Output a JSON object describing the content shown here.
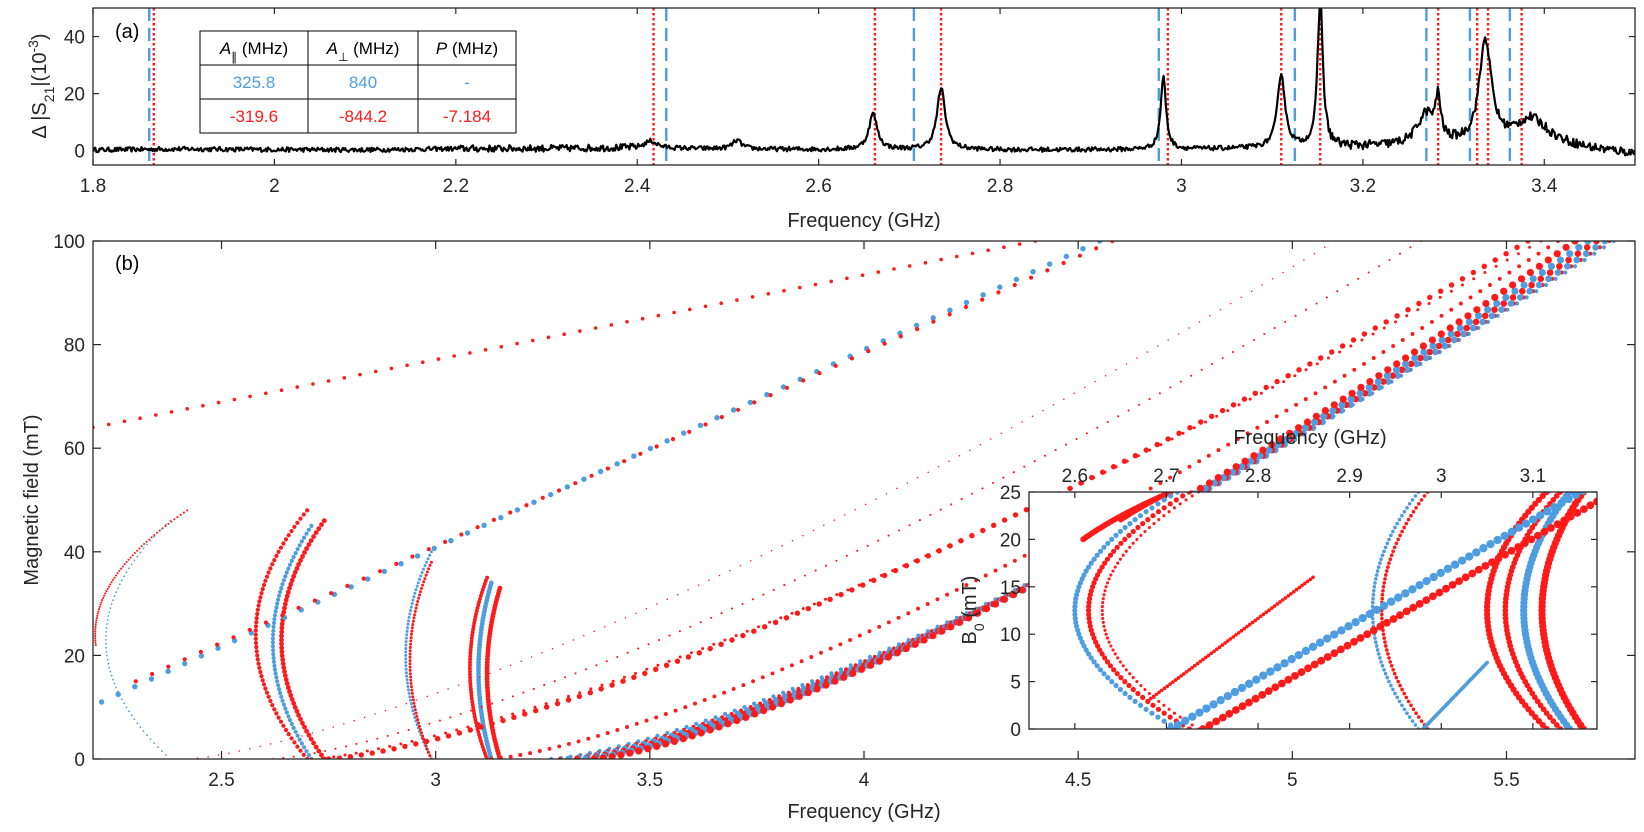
{
  "chart_data": [
    {
      "panel": "(a)",
      "type": "line",
      "xlabel": "Frequency (GHz)",
      "ylabel_parts": [
        "Δ |S",
        "21",
        "|(10",
        "-3",
        ")"
      ],
      "xlim": [
        1.8,
        3.5
      ],
      "ylim": [
        -5,
        50
      ],
      "xticks": [
        1.8,
        2.0,
        2.2,
        2.4,
        2.6,
        2.8,
        3.0,
        3.2,
        3.4
      ],
      "xtick_labels": [
        "1.8",
        "2",
        "2.2",
        "2.4",
        "2.6",
        "2.8",
        "3",
        "3.2",
        "3.4"
      ],
      "yticks": [
        0,
        20,
        40
      ],
      "ytick_labels": [
        "0",
        "20",
        "40"
      ],
      "baseline": [
        [
          1.8,
          0.3
        ],
        [
          1.9,
          0.6
        ],
        [
          2.0,
          0.4
        ],
        [
          2.1,
          0.3
        ],
        [
          2.2,
          0.7
        ],
        [
          2.3,
          0.8
        ],
        [
          2.4,
          1.0
        ],
        [
          2.5,
          0.6
        ],
        [
          2.6,
          0.4
        ],
        [
          2.8,
          0.3
        ],
        [
          2.9,
          0.3
        ],
        [
          3.0,
          0.4
        ],
        [
          3.1,
          0.8
        ],
        [
          3.2,
          1.2
        ],
        [
          3.3,
          1.5
        ],
        [
          3.4,
          3.0
        ],
        [
          3.45,
          0.5
        ],
        [
          3.5,
          -1.0
        ]
      ],
      "peaks": [
        {
          "x": 2.415,
          "h": 2.5,
          "w": 0.008
        },
        {
          "x": 2.51,
          "h": 3.0,
          "w": 0.006
        },
        {
          "x": 2.66,
          "h": 12.5,
          "w": 0.0055
        },
        {
          "x": 2.735,
          "h": 21.5,
          "w": 0.0055
        },
        {
          "x": 2.98,
          "h": 25.5,
          "w": 0.0035
        },
        {
          "x": 3.11,
          "h": 26.0,
          "w": 0.005
        },
        {
          "x": 3.153,
          "h": 52.0,
          "w": 0.0035
        },
        {
          "x": 3.27,
          "h": 11.0,
          "w": 0.012
        },
        {
          "x": 3.283,
          "h": 14.0,
          "w": 0.003
        },
        {
          "x": 3.335,
          "h": 36.0,
          "w": 0.008
        },
        {
          "x": 3.385,
          "h": 8.0,
          "w": 0.02
        }
      ],
      "dashed_lines_blue": [
        1.862,
        2.432,
        2.705,
        2.975,
        3.125,
        3.27,
        3.318,
        3.362
      ],
      "dotted_lines_red": [
        1.867,
        2.418,
        2.662,
        2.735,
        2.985,
        3.11,
        3.153,
        3.283,
        3.326,
        3.338,
        3.375
      ],
      "table": {
        "headers": [
          [
            "A",
            "∥",
            " (MHz)"
          ],
          [
            "A",
            "⊥",
            " (MHz)"
          ],
          [
            "P",
            "",
            " (MHz)"
          ]
        ],
        "rows": [
          {
            "color": "#4d9de0",
            "cells": [
              "325.8",
              "840",
              "-"
            ]
          },
          {
            "color": "#ff1a1a",
            "cells": [
              "-319.6",
              "-844.2",
              "-7.184"
            ]
          }
        ]
      }
    },
    {
      "panel": "(b)",
      "type": "scatter",
      "xlabel": "Frequency (GHz)",
      "ylabel": "Magnetic field (mT)",
      "xlim": [
        2.2,
        5.8
      ],
      "ylim": [
        0,
        100
      ],
      "xticks": [
        2.5,
        3.0,
        3.5,
        4.0,
        4.5,
        5.0,
        5.5
      ],
      "xtick_labels": [
        "2.5",
        "3",
        "3.5",
        "4",
        "4.5",
        "5",
        "5.5"
      ],
      "yticks": [
        0,
        20,
        40,
        60,
        80,
        100
      ],
      "ytick_labels": [
        "0",
        "20",
        "40",
        "60",
        "80",
        "100"
      ],
      "series_colors": {
        "blue": "#4d9de0",
        "red": "#ff1a1a"
      },
      "branches": [
        {
          "color": "red",
          "type": "parabola",
          "f0": 2.42,
          "fmin": 2.205,
          "bmin": 22,
          "bmax": 48,
          "size": 0.7
        },
        {
          "color": "blue",
          "type": "parabola",
          "f0": 2.38,
          "fmin": 2.23,
          "bmax": 46,
          "size": 0.6
        },
        {
          "color": "red",
          "type": "parabola",
          "f0": 2.7,
          "fmin": 2.58,
          "bmax": 48,
          "size": 1.4
        },
        {
          "color": "blue",
          "type": "parabola",
          "f0": 2.71,
          "fmin": 2.62,
          "bmax": 45,
          "size": 1.4
        },
        {
          "color": "red",
          "type": "parabola",
          "f0": 2.74,
          "fmin": 2.64,
          "bmax": 46,
          "size": 1.6
        },
        {
          "color": "blue",
          "type": "parabola",
          "f0": 2.99,
          "fmin": 2.93,
          "bmax": 40,
          "size": 1.0
        },
        {
          "color": "red",
          "type": "parabola",
          "f0": 2.99,
          "fmin": 2.94,
          "bmax": 38,
          "size": 1.0
        },
        {
          "color": "red",
          "type": "parabola",
          "f0": 3.12,
          "fmin": 3.08,
          "bmax": 35,
          "size": 1.3
        },
        {
          "color": "blue",
          "type": "parabola",
          "f0": 3.13,
          "fmin": 3.1,
          "bmax": 34,
          "size": 1.6
        },
        {
          "color": "red",
          "type": "parabola",
          "f0": 3.15,
          "fmin": 3.12,
          "bmax": 33,
          "size": 1.6
        },
        {
          "color": "blue",
          "type": "curve",
          "f0": 3.27,
          "fend": 5.75,
          "bend": 100,
          "size": 1.4
        },
        {
          "color": "red",
          "type": "curve",
          "f0": 3.29,
          "fend": 5.74,
          "bend": 100,
          "size": 1.4
        },
        {
          "color": "blue",
          "type": "curve",
          "f0": 3.31,
          "fend": 5.73,
          "bend": 100,
          "size": 2.2
        },
        {
          "color": "red",
          "type": "curve",
          "f0": 3.33,
          "fend": 5.71,
          "bend": 100,
          "size": 2.2
        },
        {
          "color": "blue",
          "type": "curve",
          "f0": 3.35,
          "fend": 5.69,
          "bend": 100,
          "size": 2.4
        },
        {
          "color": "red",
          "type": "curve",
          "f0": 3.37,
          "fend": 5.66,
          "bend": 100,
          "size": 2.4
        },
        {
          "color": "red",
          "type": "curve",
          "f0": 3.13,
          "fend": 5.62,
          "bend": 100,
          "size": 1.3
        },
        {
          "color": "red",
          "type": "curve",
          "f0": 2.75,
          "fend": 5.55,
          "bend": 100,
          "size": 1.8
        },
        {
          "color": "red",
          "type": "curve",
          "f0": 2.71,
          "fend": 5.58,
          "bend": 100,
          "size": 1.0
        },
        {
          "color": "red",
          "type": "curve",
          "f0": 2.62,
          "fend": 5.3,
          "bend": 100,
          "size": 0.7
        },
        {
          "color": "red",
          "type": "curve",
          "f0": 2.42,
          "fend": 5.1,
          "bend": 100,
          "size": 0.5
        },
        {
          "color": "red",
          "type": "line",
          "f1": 2.2,
          "b1": 64,
          "f2": 4.4,
          "b2": 100,
          "size": 1.2
        },
        {
          "color": "blue",
          "type": "line",
          "f1": 2.22,
          "b1": 11,
          "f2": 4.55,
          "b2": 100,
          "size": 1.8
        },
        {
          "color": "red",
          "type": "line",
          "f1": 2.3,
          "b1": 15,
          "f2": 4.58,
          "b2": 100,
          "size": 1.4
        }
      ],
      "inset": {
        "xlabel": "Frequency (GHz)",
        "ylabel_parts": [
          "B",
          "0",
          " (mT)"
        ],
        "xlim": [
          2.55,
          3.17
        ],
        "ylim": [
          0,
          25
        ],
        "xticks": [
          2.6,
          2.7,
          2.8,
          2.9,
          3.0,
          3.1
        ],
        "xtick_labels": [
          "2.6",
          "2.7",
          "2.8",
          "2.9",
          "3",
          "3.1"
        ],
        "yticks": [
          0,
          5,
          10,
          15,
          20,
          25
        ],
        "ytick_labels": [
          "0",
          "5",
          "10",
          "15",
          "20",
          "25"
        ],
        "branches": [
          {
            "color": "red",
            "type": "parabola",
            "f0": 2.705,
            "fmin": 2.555,
            "bmin": 20,
            "bmax": 25,
            "size": 2.2
          },
          {
            "color": "red",
            "type": "parabola",
            "f0": 2.705,
            "fmin": 2.575,
            "bmin": 22,
            "bmax": 25,
            "size": 1.6
          },
          {
            "color": "blue",
            "type": "parabola",
            "f0": 2.712,
            "fmin": 2.6,
            "bmax": 25,
            "size": 2.0
          },
          {
            "color": "red",
            "type": "parabola",
            "f0": 2.725,
            "fmin": 2.615,
            "bmax": 25,
            "size": 2.0
          },
          {
            "color": "red",
            "type": "parabola",
            "f0": 2.735,
            "fmin": 2.63,
            "bmax": 25,
            "size": 1.2
          },
          {
            "color": "blue",
            "type": "parabola",
            "f0": 2.975,
            "fmin": 2.925,
            "bmax": 25,
            "size": 1.4
          },
          {
            "color": "red",
            "type": "parabola",
            "f0": 2.985,
            "fmin": 2.935,
            "bmax": 25,
            "size": 1.4
          },
          {
            "color": "red",
            "type": "parabola",
            "f0": 3.115,
            "fmin": 3.05,
            "bmax": 25,
            "size": 2.4
          },
          {
            "color": "red",
            "type": "parabola",
            "f0": 3.13,
            "fmin": 3.07,
            "bmax": 25,
            "size": 2.2
          },
          {
            "color": "blue",
            "type": "parabola",
            "f0": 3.14,
            "fmin": 3.09,
            "bmax": 25,
            "size": 2.8
          },
          {
            "color": "red",
            "type": "parabola",
            "f0": 3.155,
            "fmin": 3.11,
            "bmax": 25,
            "size": 2.8
          },
          {
            "color": "blue",
            "type": "line",
            "f1": 2.705,
            "b1": 0,
            "f2": 3.17,
            "b2": 26,
            "size": 3.2
          },
          {
            "color": "red",
            "type": "line",
            "f1": 2.74,
            "b1": 0,
            "f2": 3.17,
            "b2": 24,
            "size": 3.0
          },
          {
            "color": "red",
            "type": "line",
            "f1": 2.68,
            "b1": 3,
            "f2": 2.86,
            "b2": 16,
            "size": 1.4
          },
          {
            "color": "blue",
            "type": "line",
            "f1": 2.98,
            "b1": 0,
            "f2": 3.05,
            "b2": 7,
            "size": 1.4
          }
        ]
      }
    }
  ]
}
